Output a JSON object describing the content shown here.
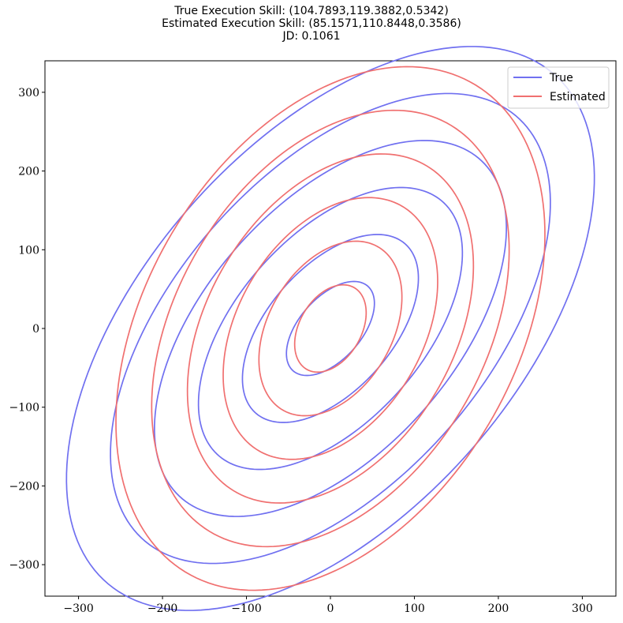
{
  "chart_data": {
    "type": "line",
    "title_lines": [
      "True Execution Skill: (104.7893,119.3882,0.5342)",
      "Estimated Execution Skill: (85.1571,110.8448,0.3586)",
      "JD: 0.1061"
    ],
    "xlabel": "",
    "ylabel": "",
    "xlim": [
      -340,
      340
    ],
    "ylim": [
      -340,
      340
    ],
    "xticks": [
      -300,
      -200,
      -100,
      0,
      100,
      200,
      300
    ],
    "yticks": [
      -300,
      -200,
      -100,
      0,
      100,
      200,
      300
    ],
    "tick_labels_x": [
      "−300",
      "−200",
      "−100",
      "0",
      "100",
      "200",
      "300"
    ],
    "tick_labels_y": [
      "−300",
      "−200",
      "−100",
      "0",
      "100",
      "200",
      "300"
    ],
    "grid": false,
    "legend_position": "top-right",
    "contour_levels_sigma": [
      0.5,
      1.0,
      1.5,
      2.0,
      2.5,
      3.0
    ],
    "series": [
      {
        "name": "True",
        "color": "#7070f0",
        "sigma_x": 104.7893,
        "sigma_y": 119.3882,
        "rho": 0.5342
      },
      {
        "name": "Estimated",
        "color": "#f07070",
        "sigma_x": 85.1571,
        "sigma_y": 110.8448,
        "rho": 0.3586
      }
    ]
  }
}
